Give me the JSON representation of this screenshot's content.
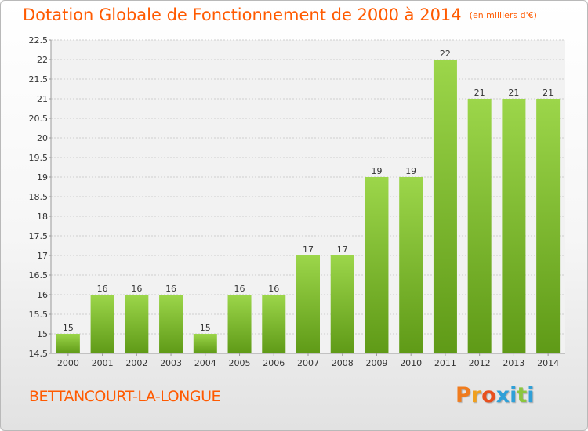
{
  "header": {
    "title": "Dotation Globale de Fonctionnement de 2000 à 2014",
    "unit_note": "(en milliers d'€)"
  },
  "footer": {
    "commune": "BETTANCOURT-LA-LONGUE",
    "logo_text": "Proxiti",
    "logo_colors": [
      "#f07c1e",
      "#f0a01e",
      "#e8501e",
      "#2fa0d8",
      "#2fa0d8",
      "#8cc63f",
      "#2fa0d8"
    ]
  },
  "colors": {
    "accent": "#ff5a00",
    "bar_top": "#9cd64a",
    "bar_bottom": "#5f9a17"
  },
  "chart_data": {
    "type": "bar",
    "categories": [
      "2000",
      "2001",
      "2002",
      "2003",
      "2004",
      "2005",
      "2006",
      "2007",
      "2008",
      "2009",
      "2010",
      "2011",
      "2012",
      "2013",
      "2014"
    ],
    "values": [
      15,
      16,
      16,
      16,
      15,
      16,
      16,
      17,
      17,
      19,
      19,
      22,
      21,
      21,
      21
    ],
    "value_labels": [
      "15",
      "16",
      "16",
      "16",
      "15",
      "16",
      "16",
      "17",
      "17",
      "19",
      "19",
      "22",
      "21",
      "21",
      "21"
    ],
    "ylim": [
      14.5,
      22.5
    ],
    "yticks": [
      "14.5",
      "15",
      "15.5",
      "16",
      "16.5",
      "17",
      "17.5",
      "18",
      "18.5",
      "19",
      "19.5",
      "20",
      "20.5",
      "21",
      "21.5",
      "22",
      "22.5"
    ],
    "grid": true,
    "xlabel": "",
    "ylabel": ""
  }
}
